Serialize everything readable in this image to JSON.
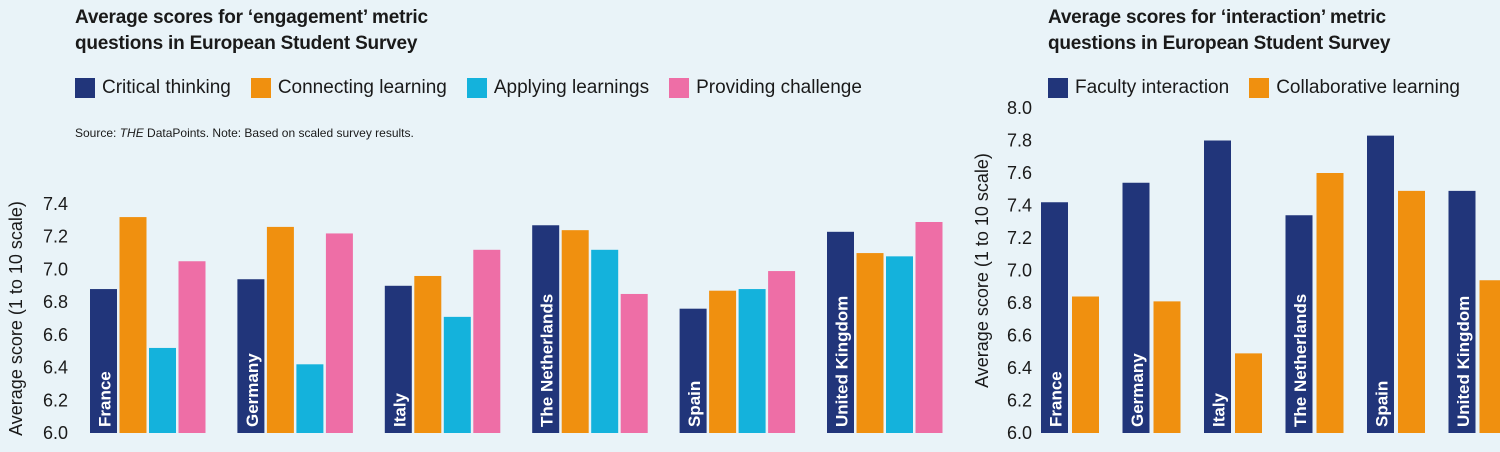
{
  "colors": {
    "critical": "#21357a",
    "connecting": "#f0900f",
    "applying": "#14b2dc",
    "challenge": "#ee6ea6",
    "faculty": "#21357a",
    "collaborative": "#f0900f"
  },
  "left": {
    "title_line1": "Average scores for ‘engagement’ metric",
    "title_line2": "questions in European Student Survey",
    "source_italic": "THE",
    "source_rest": " DataPoints. Note: Based on scaled survey results."
  },
  "right": {
    "title_line1": "Average scores for ‘interaction’ metric",
    "title_line2": "questions in European Student Survey"
  },
  "chart_data": [
    {
      "type": "bar",
      "title": "Average scores for ‘engagement’ metric questions in European Student Survey",
      "ylabel": "Average score (1 to 10 scale)",
      "ylim": [
        6.0,
        7.4
      ],
      "yticks": [
        "6.0",
        "6.2",
        "6.4",
        "6.6",
        "6.8",
        "7.0",
        "7.2",
        "7.4"
      ],
      "categories": [
        "France",
        "Germany",
        "Italy",
        "The Netherlands",
        "Spain",
        "United Kingdom"
      ],
      "series": [
        {
          "name": "Critical thinking",
          "values": [
            6.88,
            6.94,
            6.9,
            7.27,
            6.76,
            7.23
          ]
        },
        {
          "name": "Connecting learning",
          "values": [
            7.32,
            7.26,
            6.96,
            7.24,
            6.87,
            7.1
          ]
        },
        {
          "name": "Applying learnings",
          "values": [
            6.52,
            6.42,
            6.71,
            7.12,
            6.88,
            7.08
          ]
        },
        {
          "name": "Providing challenge",
          "values": [
            7.05,
            7.22,
            7.12,
            6.85,
            6.99,
            7.29
          ]
        }
      ],
      "legend": "top",
      "grid": false
    },
    {
      "type": "bar",
      "title": "Average scores for ‘interaction’ metric questions in European Student Survey",
      "ylabel": "Average score (1 to 10 scale)",
      "ylim": [
        6.0,
        8.0
      ],
      "yticks": [
        "6.0",
        "6.2",
        "6.4",
        "6.6",
        "6.8",
        "7.0",
        "7.2",
        "7.4",
        "7.6",
        "7.8",
        "8.0"
      ],
      "categories": [
        "France",
        "Germany",
        "Italy",
        "The Netherlands",
        "Spain",
        "United Kingdom"
      ],
      "series": [
        {
          "name": "Faculty interaction",
          "values": [
            7.42,
            7.54,
            7.8,
            7.34,
            7.83,
            7.49
          ]
        },
        {
          "name": "Collaborative learning",
          "values": [
            6.84,
            6.81,
            6.49,
            7.6,
            7.49,
            6.94
          ]
        }
      ],
      "legend": "top",
      "grid": false
    }
  ]
}
